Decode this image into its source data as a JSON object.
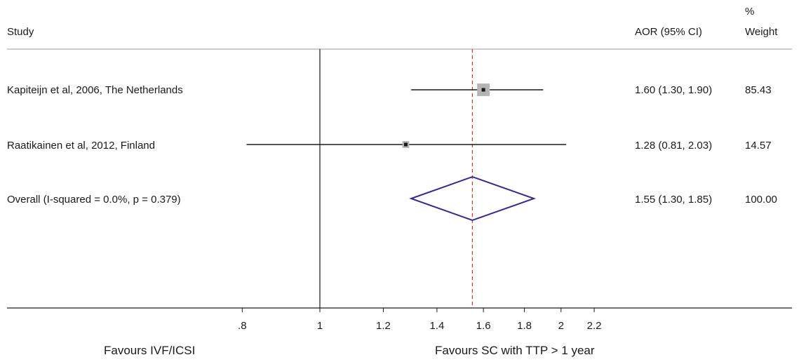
{
  "header": {
    "study_label": "Study",
    "effect_label": "AOR (95% CI)",
    "weight_label_top": "%",
    "weight_label_bottom": "Weight"
  },
  "chart_data": {
    "type": "forest",
    "xscale": "log",
    "xlim": [
      0.78,
      2.2
    ],
    "null_line": 1,
    "overall_line": 1.55,
    "x_ticks": [
      ".8",
      "1",
      "1.2",
      "1.4",
      "1.6",
      "1.8",
      "2",
      "2.2"
    ],
    "x_tick_values": [
      0.8,
      1,
      1.2,
      1.4,
      1.6,
      1.8,
      2,
      2.2
    ],
    "studies": [
      {
        "label": "Kapiteijn et al, 2006, The Netherlands",
        "or": 1.6,
        "lo": 1.3,
        "hi": 1.9,
        "ci_text": "1.60 (1.30, 1.90)",
        "weight": "85.43",
        "weight_value": 85.43
      },
      {
        "label": "Raatikainen et al, 2012, Finland",
        "or": 1.28,
        "lo": 0.81,
        "hi": 2.03,
        "ci_text": "1.28 (0.81, 2.03)",
        "weight": "14.57",
        "weight_value": 14.57
      }
    ],
    "overall": {
      "label": "Overall  (I-squared = 0.0%, p = 0.379)",
      "or": 1.55,
      "lo": 1.3,
      "hi": 1.85,
      "ci_text": "1.55 (1.30, 1.85)",
      "weight": "100.00"
    },
    "favours_left": "Favours IVF/ICSI",
    "favours_right": "Favours SC with TTP > 1 year"
  },
  "colors": {
    "line": "#1a1a1a",
    "box": "#b5b5b5",
    "diamond": "#3b2a8c",
    "overall_line": "#c0392b",
    "separator": "#999999"
  }
}
